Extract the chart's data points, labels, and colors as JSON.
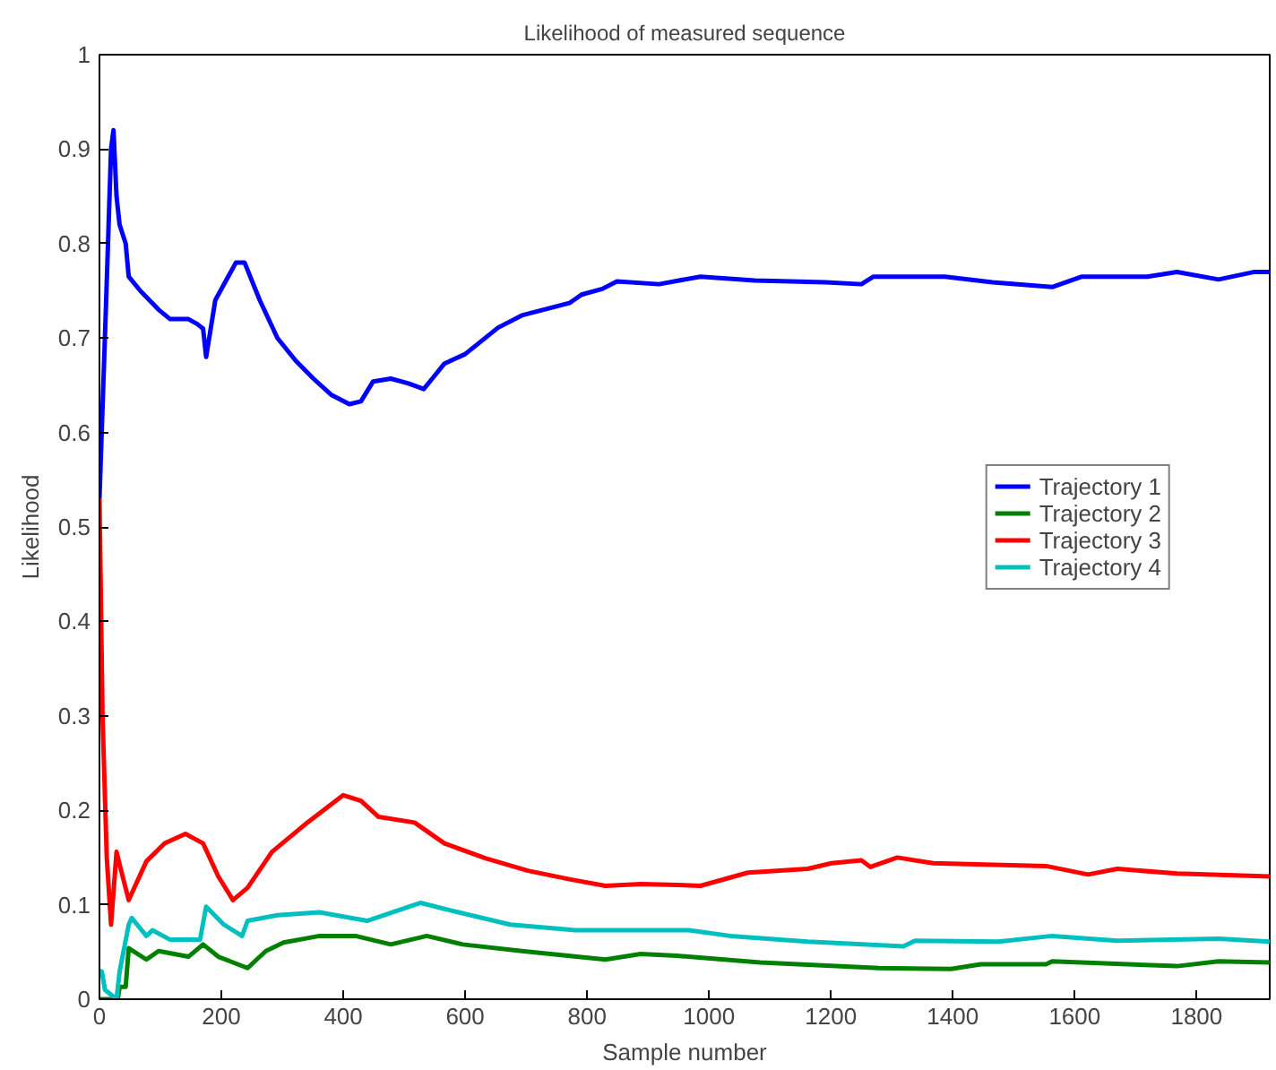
{
  "chart_data": {
    "type": "line",
    "title": "Likelihood of measured sequence",
    "xlabel": "Sample number",
    "ylabel": "Likelihood",
    "xlim": [
      0,
      1920
    ],
    "ylim": [
      0,
      1
    ],
    "xticks": [
      0,
      200,
      400,
      600,
      800,
      1000,
      1200,
      1400,
      1600,
      1800
    ],
    "yticks": [
      0,
      0.1,
      0.2,
      0.3,
      0.4,
      0.5,
      0.6,
      0.7,
      0.8,
      0.9,
      1
    ],
    "grid": false,
    "legend": "right",
    "marker": "none",
    "line_style": "solid",
    "series": [
      {
        "name": "Trajectory 1",
        "color": "#0000ff",
        "x": [
          0,
          11,
          19,
          23,
          28,
          33,
          43,
          48,
          67,
          97,
          116,
          146,
          160,
          170,
          175,
          190,
          224,
          238,
          263,
          292,
          322,
          351,
          380,
          410,
          429,
          449,
          478,
          507,
          532,
          546,
          566,
          600,
          654,
          693,
          771,
          791,
          825,
          849,
          918,
          986,
          1075,
          1191,
          1250,
          1270,
          1387,
          1465,
          1563,
          1612,
          1719,
          1768,
          1836,
          1895,
          1920
        ],
        "values": [
          0.53,
          0.74,
          0.9,
          0.92,
          0.85,
          0.82,
          0.8,
          0.765,
          0.75,
          0.73,
          0.72,
          0.72,
          0.715,
          0.71,
          0.68,
          0.74,
          0.78,
          0.78,
          0.74,
          0.7,
          0.676,
          0.657,
          0.64,
          0.63,
          0.633,
          0.654,
          0.657,
          0.652,
          0.646,
          0.657,
          0.673,
          0.683,
          0.711,
          0.724,
          0.737,
          0.746,
          0.752,
          0.76,
          0.757,
          0.765,
          0.761,
          0.759,
          0.757,
          0.765,
          0.765,
          0.759,
          0.754,
          0.765,
          0.765,
          0.77,
          0.762,
          0.77,
          0.77
        ]
      },
      {
        "name": "Trajectory 2",
        "color": "#008000",
        "x": [
          0,
          30,
          33,
          43,
          48,
          77,
          97,
          146,
          170,
          195,
          243,
          273,
          302,
          361,
          420,
          478,
          537,
          596,
          693,
          830,
          888,
          947,
          1084,
          1279,
          1397,
          1446,
          1553,
          1563,
          1768,
          1836,
          1920
        ],
        "values": [
          0,
          0,
          0.013,
          0.013,
          0.054,
          0.042,
          0.051,
          0.045,
          0.058,
          0.045,
          0.033,
          0.051,
          0.06,
          0.067,
          0.067,
          0.058,
          0.067,
          0.058,
          0.051,
          0.042,
          0.048,
          0.046,
          0.039,
          0.033,
          0.032,
          0.037,
          0.037,
          0.04,
          0.035,
          0.04,
          0.039
        ]
      },
      {
        "name": "Trajectory 3",
        "color": "#ff0000",
        "x": [
          0,
          5,
          12,
          19,
          28,
          38,
          48,
          77,
          107,
          141,
          170,
          195,
          219,
          243,
          283,
          341,
          400,
          429,
          458,
          517,
          566,
          634,
          703,
          771,
          830,
          889,
          947,
          986,
          1064,
          1162,
          1201,
          1250,
          1265,
          1309,
          1368,
          1553,
          1622,
          1670,
          1768,
          1920
        ],
        "values": [
          0.53,
          0.3,
          0.15,
          0.079,
          0.156,
          0.13,
          0.105,
          0.146,
          0.165,
          0.175,
          0.165,
          0.13,
          0.105,
          0.118,
          0.156,
          0.187,
          0.216,
          0.21,
          0.193,
          0.187,
          0.165,
          0.149,
          0.136,
          0.127,
          0.12,
          0.122,
          0.121,
          0.12,
          0.134,
          0.138,
          0.144,
          0.147,
          0.14,
          0.15,
          0.144,
          0.141,
          0.132,
          0.138,
          0.133,
          0.13
        ]
      },
      {
        "name": "Trajectory 4",
        "color": "#00bfbf",
        "x": [
          0,
          4,
          9,
          28,
          33,
          48,
          53,
          77,
          87,
          116,
          165,
          175,
          204,
          234,
          243,
          292,
          361,
          439,
          527,
          576,
          674,
          781,
          967,
          1035,
          1162,
          1319,
          1338,
          1475,
          1563,
          1670,
          1836,
          1920
        ],
        "values": [
          0.03,
          0.029,
          0.01,
          0,
          0.029,
          0.079,
          0.086,
          0.067,
          0.073,
          0.063,
          0.063,
          0.098,
          0.079,
          0.067,
          0.083,
          0.089,
          0.092,
          0.083,
          0.102,
          0.094,
          0.079,
          0.073,
          0.073,
          0.067,
          0.061,
          0.056,
          0.062,
          0.061,
          0.067,
          0.062,
          0.064,
          0.061
        ]
      }
    ]
  }
}
